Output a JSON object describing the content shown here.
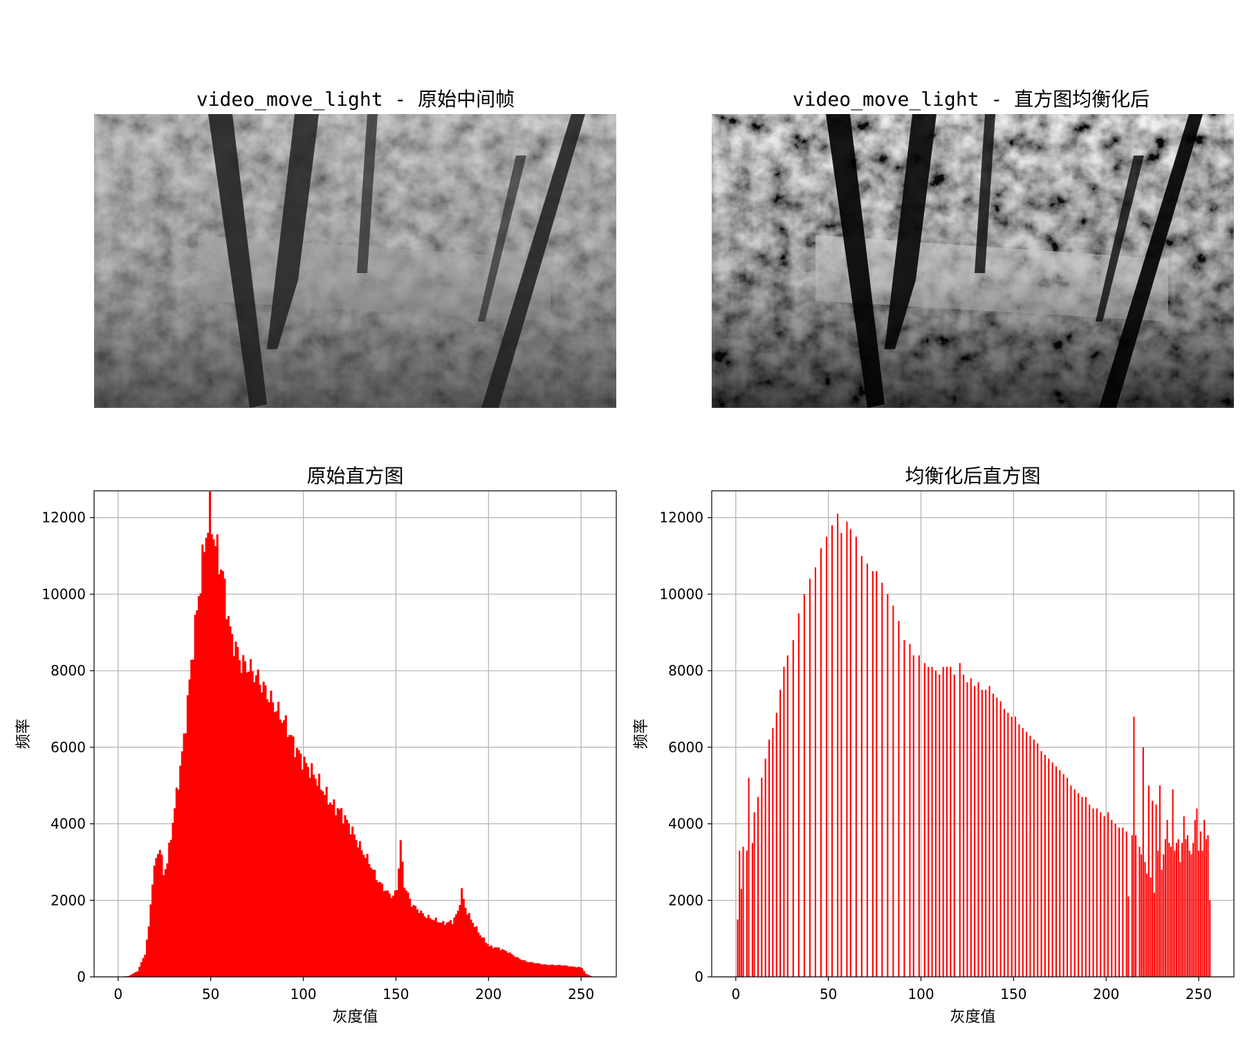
{
  "panels": {
    "original_image_title": "video_move_light - 原始中间帧",
    "equalized_image_title": "video_move_light - 直方图均衡化后"
  },
  "image_description_labels": [],
  "chart_data": [
    {
      "type": "bar",
      "title": "原始直方图",
      "xlabel": "灰度值",
      "ylabel": "频率",
      "xlim": [
        -13,
        269
      ],
      "ylim": [
        0,
        12700
      ],
      "xticks": [
        0,
        50,
        100,
        150,
        200,
        250
      ],
      "yticks": [
        0,
        2000,
        4000,
        6000,
        8000,
        10000,
        12000
      ],
      "grid": true,
      "color": "#ff0000",
      "anchors": [
        [
          0,
          0
        ],
        [
          5,
          20
        ],
        [
          10,
          150
        ],
        [
          14,
          600
        ],
        [
          16,
          1300
        ],
        [
          18,
          2500
        ],
        [
          20,
          3100
        ],
        [
          22,
          3400
        ],
        [
          24,
          2700
        ],
        [
          26,
          3000
        ],
        [
          30,
          4400
        ],
        [
          35,
          6200
        ],
        [
          40,
          8700
        ],
        [
          44,
          10400
        ],
        [
          47,
          11600
        ],
        [
          49,
          12100
        ],
        [
          52,
          11300
        ],
        [
          56,
          10500
        ],
        [
          60,
          9000
        ],
        [
          66,
          8200
        ],
        [
          70,
          8100
        ],
        [
          75,
          7800
        ],
        [
          80,
          7400
        ],
        [
          90,
          6600
        ],
        [
          95,
          6000
        ],
        [
          100,
          5600
        ],
        [
          105,
          5300
        ],
        [
          110,
          4900
        ],
        [
          115,
          4500
        ],
        [
          120,
          4300
        ],
        [
          125,
          3900
        ],
        [
          130,
          3400
        ],
        [
          135,
          3000
        ],
        [
          140,
          2500
        ],
        [
          145,
          2200
        ],
        [
          148,
          2100
        ],
        [
          150,
          2300
        ],
        [
          152,
          3500
        ],
        [
          154,
          2400
        ],
        [
          158,
          1900
        ],
        [
          165,
          1600
        ],
        [
          170,
          1500
        ],
        [
          175,
          1400
        ],
        [
          180,
          1450
        ],
        [
          183,
          1700
        ],
        [
          185,
          2250
        ],
        [
          187,
          1800
        ],
        [
          190,
          1500
        ],
        [
          195,
          1100
        ],
        [
          200,
          800
        ],
        [
          205,
          750
        ],
        [
          210,
          650
        ],
        [
          215,
          500
        ],
        [
          220,
          400
        ],
        [
          230,
          320
        ],
        [
          240,
          300
        ],
        [
          246,
          260
        ],
        [
          249,
          250
        ],
        [
          250,
          230
        ],
        [
          252,
          80
        ],
        [
          255,
          20
        ]
      ]
    },
    {
      "type": "bar",
      "title": "均衡化后直方图",
      "xlabel": "灰度值",
      "ylabel": "频率",
      "xlim": [
        -13,
        269
      ],
      "ylim": [
        0,
        12700
      ],
      "xticks": [
        0,
        50,
        100,
        150,
        200,
        250
      ],
      "yticks": [
        0,
        2000,
        4000,
        6000,
        8000,
        10000,
        12000
      ],
      "grid": true,
      "color": "#ff0000",
      "bars": [
        [
          1,
          1500
        ],
        [
          2,
          3300
        ],
        [
          3,
          2300
        ],
        [
          4,
          3400
        ],
        [
          6,
          3300
        ],
        [
          7,
          5200
        ],
        [
          9,
          3500
        ],
        [
          10,
          4300
        ],
        [
          12,
          4700
        ],
        [
          14,
          5200
        ],
        [
          16,
          5700
        ],
        [
          18,
          6200
        ],
        [
          20,
          6500
        ],
        [
          22,
          6900
        ],
        [
          24,
          7500
        ],
        [
          26,
          8100
        ],
        [
          28,
          8400
        ],
        [
          31,
          8800
        ],
        [
          34,
          9500
        ],
        [
          37,
          10000
        ],
        [
          40,
          10400
        ],
        [
          43,
          10700
        ],
        [
          46,
          11200
        ],
        [
          49,
          11500
        ],
        [
          52,
          11800
        ],
        [
          55,
          12100
        ],
        [
          57,
          11600
        ],
        [
          60,
          11900
        ],
        [
          62,
          11700
        ],
        [
          65,
          11500
        ],
        [
          68,
          11000
        ],
        [
          71,
          10800
        ],
        [
          74,
          10600
        ],
        [
          76,
          10600
        ],
        [
          79,
          10300
        ],
        [
          82,
          10000
        ],
        [
          85,
          9700
        ],
        [
          88,
          9300
        ],
        [
          91,
          8800
        ],
        [
          94,
          8700
        ],
        [
          96,
          8400
        ],
        [
          99,
          8400
        ],
        [
          102,
          8200
        ],
        [
          104,
          8100
        ],
        [
          106,
          8100
        ],
        [
          108,
          8000
        ],
        [
          110,
          7900
        ],
        [
          112,
          8100
        ],
        [
          114,
          8100
        ],
        [
          116,
          8100
        ],
        [
          118,
          7900
        ],
        [
          121,
          8200
        ],
        [
          123,
          7900
        ],
        [
          125,
          7700
        ],
        [
          127,
          7800
        ],
        [
          129,
          7600
        ],
        [
          131,
          7700
        ],
        [
          133,
          7500
        ],
        [
          135,
          7500
        ],
        [
          137,
          7600
        ],
        [
          139,
          7400
        ],
        [
          141,
          7300
        ],
        [
          143,
          7200
        ],
        [
          145,
          7000
        ],
        [
          147,
          6900
        ],
        [
          149,
          6800
        ],
        [
          151,
          6800
        ],
        [
          153,
          6600
        ],
        [
          155,
          6500
        ],
        [
          157,
          6400
        ],
        [
          159,
          6300
        ],
        [
          161,
          6200
        ],
        [
          163,
          6100
        ],
        [
          165,
          5900
        ],
        [
          167,
          5800
        ],
        [
          169,
          5700
        ],
        [
          171,
          5600
        ],
        [
          173,
          5500
        ],
        [
          175,
          5400
        ],
        [
          177,
          5300
        ],
        [
          179,
          5200
        ],
        [
          181,
          5000
        ],
        [
          183,
          4900
        ],
        [
          185,
          4800
        ],
        [
          187,
          4700
        ],
        [
          189,
          4700
        ],
        [
          191,
          4500
        ],
        [
          193,
          4400
        ],
        [
          195,
          4400
        ],
        [
          197,
          4300
        ],
        [
          199,
          4200
        ],
        [
          201,
          4300
        ],
        [
          203,
          4100
        ],
        [
          205,
          4000
        ],
        [
          207,
          3900
        ],
        [
          209,
          3900
        ],
        [
          211,
          3800
        ],
        [
          212,
          2100
        ],
        [
          214,
          3700
        ],
        [
          215,
          6800
        ],
        [
          216,
          3700
        ],
        [
          218,
          3400
        ],
        [
          219,
          3200
        ],
        [
          220,
          6000
        ],
        [
          221,
          3000
        ],
        [
          222,
          2700
        ],
        [
          223,
          5000
        ],
        [
          224,
          2600
        ],
        [
          225,
          4600
        ],
        [
          226,
          2200
        ],
        [
          227,
          4500
        ],
        [
          228,
          3300
        ],
        [
          229,
          5000
        ],
        [
          230,
          2800
        ],
        [
          231,
          3200
        ],
        [
          232,
          3600
        ],
        [
          233,
          4100
        ],
        [
          234,
          3500
        ],
        [
          235,
          3400
        ],
        [
          236,
          4900
        ],
        [
          237,
          3300
        ],
        [
          238,
          3500
        ],
        [
          239,
          3600
        ],
        [
          240,
          3000
        ],
        [
          241,
          3500
        ],
        [
          242,
          4200
        ],
        [
          243,
          3600
        ],
        [
          244,
          3700
        ],
        [
          245,
          3300
        ],
        [
          246,
          3200
        ],
        [
          247,
          3500
        ],
        [
          248,
          4100
        ],
        [
          249,
          4400
        ],
        [
          250,
          3300
        ],
        [
          251,
          3800
        ],
        [
          252,
          3300
        ],
        [
          253,
          4100
        ],
        [
          254,
          3600
        ],
        [
          255,
          3700
        ],
        [
          256,
          2000
        ]
      ]
    }
  ]
}
